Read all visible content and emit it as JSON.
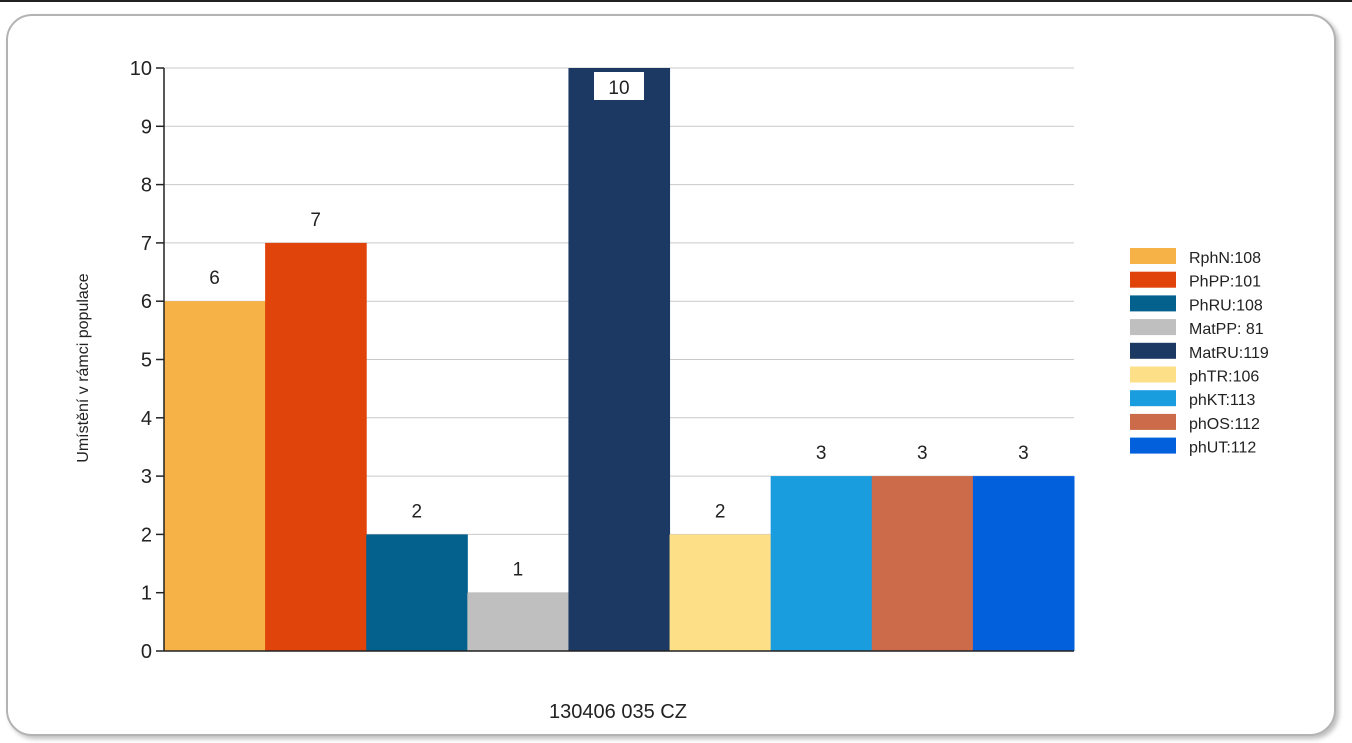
{
  "chart_data": {
    "type": "bar",
    "title": "",
    "xlabel": "130406 035 CZ",
    "ylabel": "Umístění v rámci populace",
    "ylim": [
      0,
      10
    ],
    "yticks": [
      0,
      1,
      2,
      3,
      4,
      5,
      6,
      7,
      8,
      9,
      10
    ],
    "grid": true,
    "legend_position": "right",
    "categories": [
      "130406 035 CZ"
    ],
    "series": [
      {
        "name": "RphN:108",
        "values": [
          6
        ],
        "color": "#f7b247"
      },
      {
        "name": "PhPP:101",
        "values": [
          7
        ],
        "color": "#e0440a"
      },
      {
        "name": "PhRU:108",
        "values": [
          2
        ],
        "color": "#04618e"
      },
      {
        "name": "MatPP: 81",
        "values": [
          1
        ],
        "color": "#bfbfbf"
      },
      {
        "name": "MatRU:119",
        "values": [
          10
        ],
        "color": "#1b3963"
      },
      {
        "name": "phTR:106",
        "values": [
          2
        ],
        "color": "#fddf87"
      },
      {
        "name": "phKT:113",
        "values": [
          3
        ],
        "color": "#199ddf"
      },
      {
        "name": "phOS:112",
        "values": [
          3
        ],
        "color": "#cb6b4a"
      },
      {
        "name": "phUT:112",
        "values": [
          3
        ],
        "color": "#0260dd"
      }
    ]
  }
}
